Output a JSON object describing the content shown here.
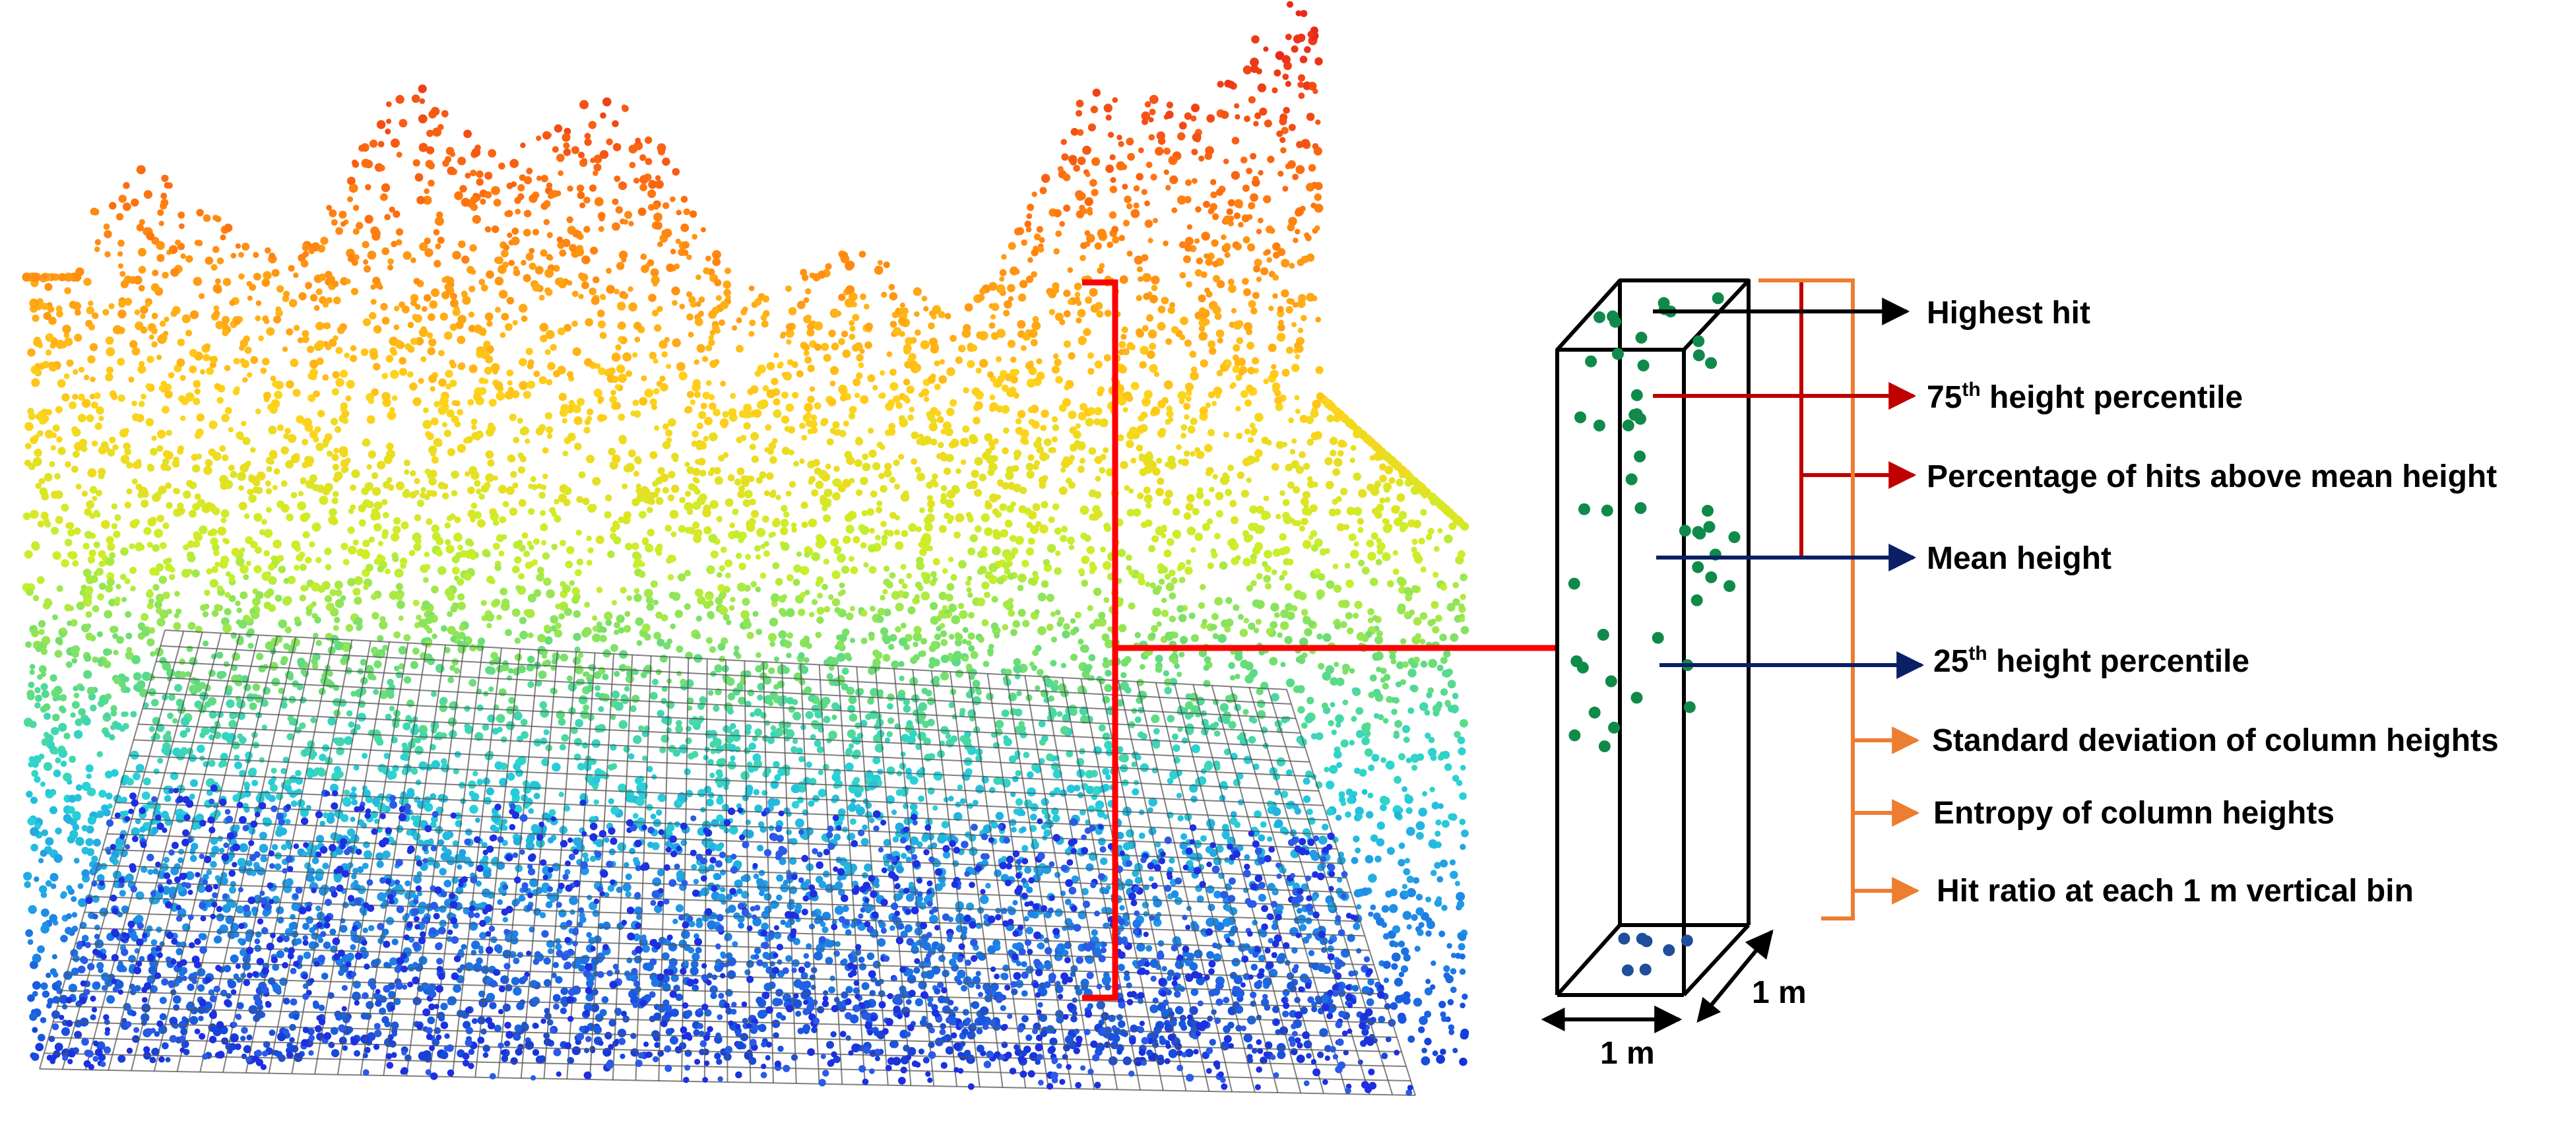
{
  "colors": {
    "black": "#000000",
    "red": "#c00000",
    "navy": "#0a1f66",
    "orange": "#ed7d31",
    "bright_red": "#ff0000",
    "point_green": "#0f8a4a",
    "point_blue": "#1f4e9a",
    "mesh": "#555555"
  },
  "metrics": {
    "highest_hit": "Highest hit",
    "p75_number": "75",
    "p75_sup": "th",
    "p75_rest": " height percentile",
    "pct_above_mean": "Percentage of hits above mean height",
    "mean_height": "Mean height",
    "p25_number": "25",
    "p25_sup": "th",
    "p25_rest": " height percentile",
    "std_dev": "Standard deviation of column heights",
    "entropy": "Entropy of column heights",
    "hit_ratio": "Hit ratio at each 1 m vertical bin"
  },
  "dimensions": {
    "width_label": "1 m",
    "depth_label": "1 m"
  }
}
